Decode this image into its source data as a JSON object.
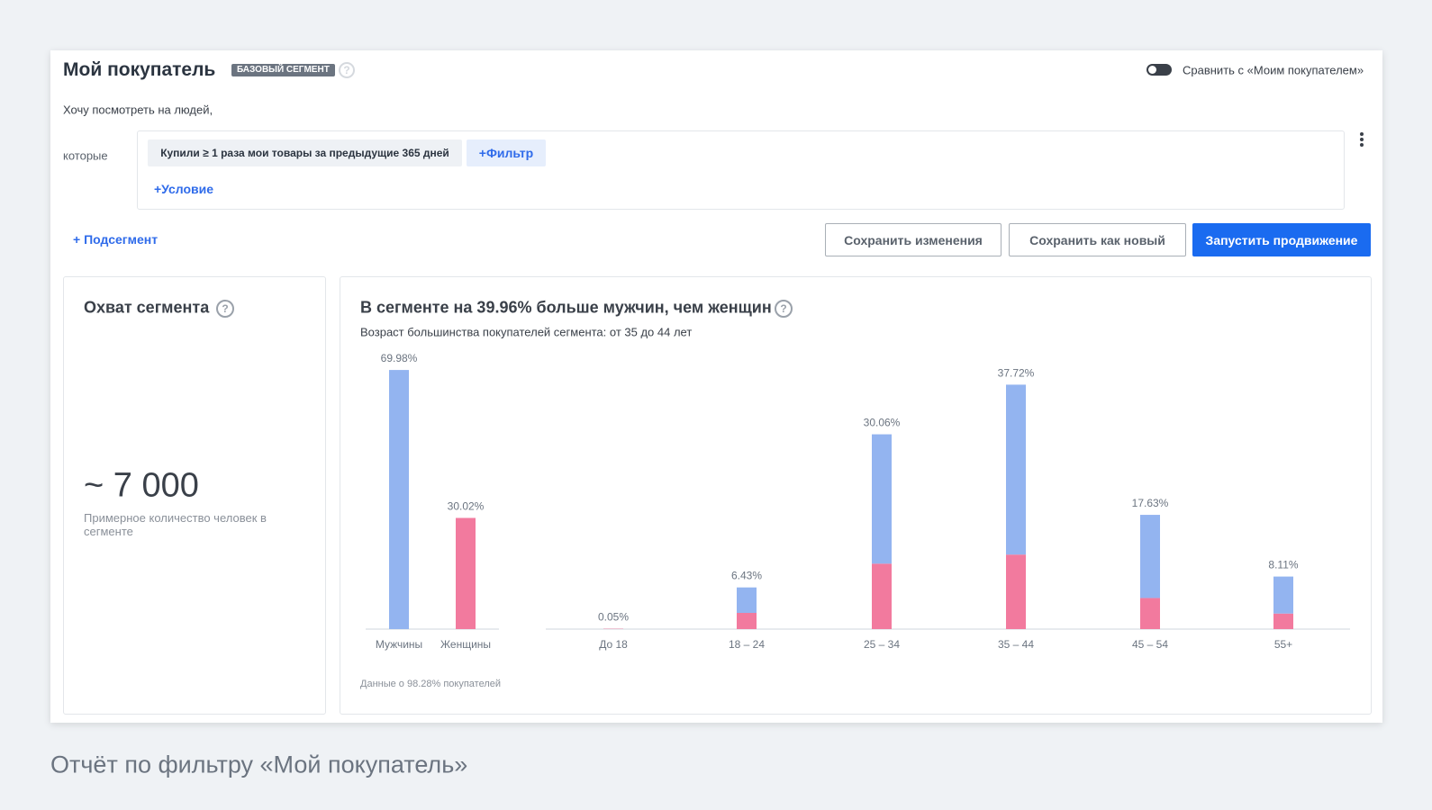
{
  "header": {
    "title": "Мой покупатель",
    "badge": "БАЗОВЫЙ СЕГМЕНТ",
    "compare_label": "Сравнить с «Моим покупателем»"
  },
  "intro": "Хочу посмотреть на людей,",
  "condition_label": "которые",
  "conditions": [
    "Купили ≥ 1 раза мои товары за предыдущие 365 дней"
  ],
  "filter_button": "+Фильтр",
  "add_condition": "+Условие",
  "subsegment": "+ Подсегмент",
  "buttons": [
    "Сохранить изменения",
    "Сохранить как новый",
    "Запустить продвижение"
  ],
  "reach": {
    "title": "Охват сегмента",
    "value": "~ 7 000",
    "description": "Примерное количество человек в сегменте"
  },
  "demographics": {
    "title": "В сегменте на 39.96% больше мужчин, чем женщин",
    "subtitle": "Возраст большинства покупателей сегмента: от 35 до 44 лет",
    "footnote": "Данные о 98.28% покупателей"
  },
  "chart_data": [
    {
      "type": "bar",
      "categories": [
        "Мужчины",
        "Женщины"
      ],
      "values": [
        69.98,
        30.02
      ],
      "value_labels": [
        "69.98%",
        "30.02%"
      ],
      "colors": [
        "#93b4f0",
        "#f27a9e"
      ],
      "ylim": [
        0,
        70
      ]
    },
    {
      "type": "stacked_bar",
      "categories": [
        "До 18",
        "18 – 24",
        "25 – 34",
        "35 – 44",
        "45 – 54",
        "55+"
      ],
      "series": [
        {
          "color": "#f27a9e",
          "values": [
            0.05,
            2.5,
            10.1,
            11.5,
            4.8,
            2.4
          ]
        },
        {
          "color": "#93b4f0",
          "values": [
            0,
            3.93,
            19.96,
            26.22,
            12.83,
            5.71
          ]
        }
      ],
      "totals": [
        0.05,
        6.43,
        30.06,
        37.72,
        17.63,
        8.11
      ],
      "total_labels": [
        "0.05%",
        "6.43%",
        "30.06%",
        "37.72%",
        "17.63%",
        "8.11%"
      ],
      "ylim": [
        0,
        40
      ]
    }
  ],
  "caption": "Отчёт по фильтру «Мой покупатель»"
}
